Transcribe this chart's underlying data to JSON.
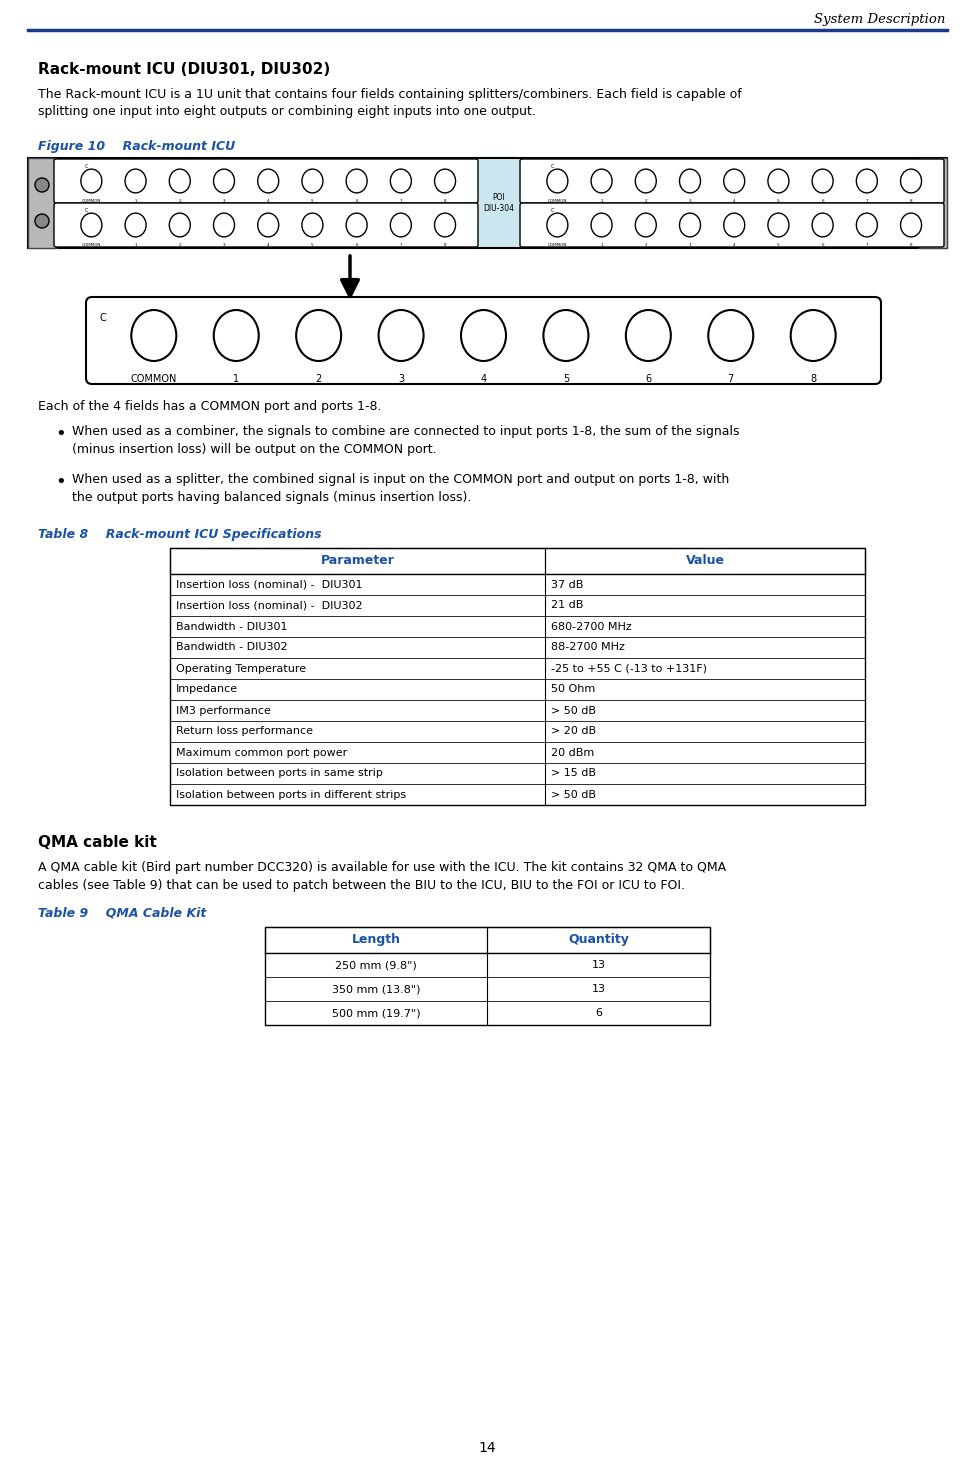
{
  "header_text": "System Description",
  "header_line_color": "#1a3a8a",
  "page_number": "14",
  "section_title": "Rack-mount ICU (DIU301, DIU302)",
  "section_body": "The Rack-mount ICU is a 1U unit that contains four fields containing splitters/combiners. Each field is capable of\nsplitting one input into eight outputs or combining eight inputs into one output.",
  "figure_label": "Figure 10    Rack-mount ICU",
  "body_after_figure": "Each of the 4 fields has a COMMON port and ports 1-8.",
  "bullet1": "When used as a combiner, the signals to combine are connected to input ports 1-8, the sum of the signals\n(minus insertion loss) will be output on the COMMON port.",
  "bullet2": "When used as a splitter, the combined signal is input on the COMMON port and output on ports 1-8, with\nthe output ports having balanced signals (minus insertion loss).",
  "table8_label": "Table 8    Rack-mount ICU Specifications",
  "table8_header": [
    "Parameter",
    "Value"
  ],
  "table8_rows": [
    [
      "Insertion loss (nominal) -  DIU301",
      "37 dB"
    ],
    [
      "Insertion loss (nominal) -  DIU302",
      "21 dB"
    ],
    [
      "Bandwidth - DIU301",
      "680-2700 MHz"
    ],
    [
      "Bandwidth - DIU302",
      "88-2700 MHz"
    ],
    [
      "Operating Temperature",
      "-25 to +55 C (-13 to +131F)"
    ],
    [
      "Impedance",
      "50 Ohm"
    ],
    [
      "IM3 performance",
      "> 50 dB"
    ],
    [
      "Return loss performance",
      "> 20 dB"
    ],
    [
      "Maximum common port power",
      "20 dBm"
    ],
    [
      "Isolation between ports in same strip",
      "> 15 dB"
    ],
    [
      "Isolation between ports in different strips",
      "> 50 dB"
    ]
  ],
  "qma_title": "QMA cable kit",
  "qma_body": "A QMA cable kit (Bird part number DCC320) is available for use with the ICU. The kit contains 32 QMA to QMA\ncables (see Table 9) that can be used to patch between the BIU to the ICU, BIU to the FOI or ICU to FOI.",
  "table9_label": "Table 9    QMA Cable Kit",
  "table9_header": [
    "Length",
    "Quantity"
  ],
  "table9_rows": [
    [
      "250 mm (9.8\")",
      "13"
    ],
    [
      "350 mm (13.8\")",
      "13"
    ],
    [
      "500 mm (19.7\")",
      "6"
    ]
  ],
  "blue_color": "#1a52a8",
  "rack_bg": "#cce6f0",
  "body_font_size": 9,
  "title_font_size": 11
}
